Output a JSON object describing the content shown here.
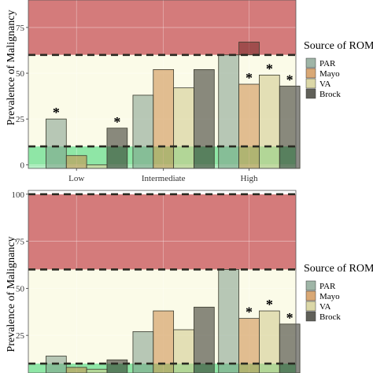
{
  "legend": {
    "title": "Source of ROM",
    "entries": [
      {
        "label": "PAR",
        "color": "#7f9c8a"
      },
      {
        "label": "Mayo",
        "color": "#cc8b47"
      },
      {
        "label": "VA",
        "color": "#cfc98a"
      },
      {
        "label": "Brock",
        "color": "#2b2b22"
      }
    ]
  },
  "zones": {
    "red": "#d47b7b",
    "yellow": "#fbfbe8",
    "green": "#8fe6a6",
    "bar_alpha": 0.55
  },
  "chart_data": [
    {
      "type": "bar",
      "ylabel": "Prevalence of Malignancy",
      "ylim": [
        -2,
        90
      ],
      "yticks": [
        "0",
        "25",
        "50",
        "75"
      ],
      "ytick_values": [
        0,
        25,
        50,
        75
      ],
      "zone_bounds": {
        "green_top": 10,
        "yellow_top": 60,
        "red_top": 90
      },
      "dashed_lines": [
        10,
        60
      ],
      "categories": [
        "Low",
        "Intermediate",
        "High"
      ],
      "series": [
        {
          "name": "PAR",
          "values": [
            25,
            38,
            60
          ]
        },
        {
          "name": "Mayo",
          "values": [
            5,
            52,
            44
          ]
        },
        {
          "name": "VA",
          "values": [
            0,
            42,
            49
          ]
        },
        {
          "name": "Brock",
          "values": [
            20,
            52,
            43
          ]
        }
      ],
      "overlay": {
        "category": "High",
        "series": "PAR",
        "value": 67
      },
      "stars": [
        {
          "category": "Low",
          "series": "PAR"
        },
        {
          "category": "Low",
          "series": "Brock"
        },
        {
          "category": "High",
          "series": "Mayo"
        },
        {
          "category": "High",
          "series": "VA"
        },
        {
          "category": "High",
          "series": "Brock"
        }
      ],
      "star_symbol": "*"
    },
    {
      "type": "bar",
      "ylabel": "Prevalence of Malignancy",
      "ylim": [
        5,
        102
      ],
      "yticks": [
        "25",
        "50",
        "75",
        "100"
      ],
      "ytick_values": [
        25,
        50,
        75,
        100
      ],
      "zone_bounds": {
        "green_top": 10,
        "yellow_top": 60,
        "red_top": 100
      },
      "dashed_lines": [
        10,
        60,
        100
      ],
      "categories": [
        "Low",
        "Intermediate",
        "High"
      ],
      "series": [
        {
          "name": "PAR",
          "values": [
            14,
            27,
            60
          ]
        },
        {
          "name": "Mayo",
          "values": [
            8,
            38,
            34
          ]
        },
        {
          "name": "VA",
          "values": [
            7,
            28,
            38
          ]
        },
        {
          "name": "Brock",
          "values": [
            12,
            40,
            31
          ]
        }
      ],
      "stars": [
        {
          "category": "High",
          "series": "Mayo"
        },
        {
          "category": "High",
          "series": "VA"
        },
        {
          "category": "High",
          "series": "Brock"
        }
      ],
      "star_symbol": "*"
    }
  ]
}
